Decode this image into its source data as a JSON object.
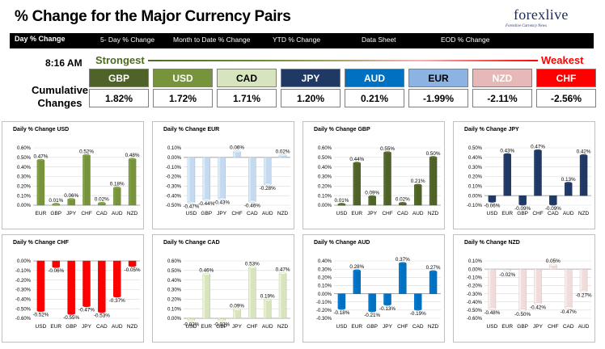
{
  "header": {
    "title": "% Change for the Major Currency Pairs",
    "logo_text": "forexlive",
    "logo_tagline": "Forexlive Currency News"
  },
  "nav": {
    "tabs": [
      "Day % Change",
      "5- Day % Change",
      "Month to Date % Change",
      "YTD % Change",
      "Data Sheet",
      "EOD % Change"
    ]
  },
  "summary": {
    "time": "8:16 AM",
    "strongest_label": "Strongest",
    "weakest_label": "Weakest",
    "cumulative_label_line1": "Cumulative",
    "cumulative_label_line2": "Changes",
    "currencies": [
      {
        "code": "GBP",
        "value": "1.82%",
        "bg": "#4f6228",
        "fg": "#ffffff"
      },
      {
        "code": "USD",
        "value": "1.72%",
        "bg": "#77933c",
        "fg": "#ffffff"
      },
      {
        "code": "CAD",
        "value": "1.71%",
        "bg": "#d7e4bd",
        "fg": "#000000"
      },
      {
        "code": "JPY",
        "value": "1.20%",
        "bg": "#1f3864",
        "fg": "#ffffff"
      },
      {
        "code": "AUD",
        "value": "0.21%",
        "bg": "#0070c0",
        "fg": "#ffffff"
      },
      {
        "code": "EUR",
        "value": "-1.99%",
        "bg": "#8db3e2",
        "fg": "#000000"
      },
      {
        "code": "NZD",
        "value": "-2.11%",
        "bg": "#e6b9b8",
        "fg": "#ffffff"
      },
      {
        "code": "CHF",
        "value": "-2.56%",
        "bg": "#ff0000",
        "fg": "#ffffff"
      }
    ]
  },
  "chart_data": [
    {
      "type": "bar",
      "title": "Daily % Change USD",
      "categories": [
        "EUR",
        "GBP",
        "JPY",
        "CHF",
        "CAD",
        "AUD",
        "NZD"
      ],
      "values": [
        0.47,
        0.01,
        0.06,
        0.52,
        0.02,
        0.18,
        0.48
      ],
      "labels": [
        "0.47%",
        "0.01%",
        "0.06%",
        "0.52%",
        "0.02%",
        "0.18%",
        "0.48%"
      ],
      "ylim": [
        0,
        0.6
      ],
      "yticks": [
        "0.00%",
        "0.10%",
        "0.20%",
        "0.30%",
        "0.40%",
        "0.50%",
        "0.60%"
      ],
      "color": "#77933c"
    },
    {
      "type": "bar",
      "title": "Daily % Change EUR",
      "categories": [
        "USD",
        "GBP",
        "JPY",
        "CHF",
        "CAD",
        "AUD",
        "NZD"
      ],
      "values": [
        -0.47,
        -0.44,
        -0.43,
        0.06,
        -0.46,
        -0.28,
        0.02
      ],
      "labels": [
        "-0.47%",
        "-0.44%",
        "-0.43%",
        "0.06%",
        "-0.46%",
        "-0.28%",
        "0.02%"
      ],
      "ylim": [
        -0.5,
        0.1
      ],
      "yticks": [
        "-0.50%",
        "-0.40%",
        "-0.30%",
        "-0.20%",
        "-0.10%",
        "0.00%",
        "0.10%"
      ],
      "color": "#c5d9f1"
    },
    {
      "type": "bar",
      "title": "Daily % Change GBP",
      "categories": [
        "USD",
        "EUR",
        "JPY",
        "CHF",
        "CAD",
        "AUD",
        "NZD"
      ],
      "values": [
        0.01,
        0.44,
        0.09,
        0.55,
        0.02,
        0.21,
        0.5
      ],
      "labels": [
        "0.01%",
        "0.44%",
        "0.09%",
        "0.55%",
        "0.02%",
        "0.21%",
        "0.50%"
      ],
      "ylim": [
        0,
        0.6
      ],
      "yticks": [
        "0.00%",
        "0.10%",
        "0.20%",
        "0.30%",
        "0.40%",
        "0.50%",
        "0.60%"
      ],
      "color": "#4f6228"
    },
    {
      "type": "bar",
      "title": "Daily % Change JPY",
      "categories": [
        "USD",
        "EUR",
        "GBP",
        "CHF",
        "CAD",
        "AUD",
        "NZD"
      ],
      "values": [
        -0.06,
        0.43,
        -0.09,
        0.47,
        -0.09,
        0.13,
        0.42
      ],
      "labels": [
        "-0.06%",
        "0.43%",
        "-0.09%",
        "0.47%",
        "-0.09%",
        "0.13%",
        "0.42%"
      ],
      "ylim": [
        -0.1,
        0.5
      ],
      "yticks": [
        "-0.10%",
        "0.00%",
        "0.10%",
        "0.20%",
        "0.30%",
        "0.40%",
        "0.50%"
      ],
      "color": "#1f3864"
    },
    {
      "type": "bar",
      "title": "Daily % Change CHF",
      "categories": [
        "USD",
        "EUR",
        "GBP",
        "JPY",
        "CAD",
        "AUD",
        "NZD"
      ],
      "values": [
        -0.52,
        -0.06,
        -0.55,
        -0.47,
        -0.53,
        -0.37,
        -0.05
      ],
      "labels": [
        "-0.52%",
        "-0.06%",
        "-0.55%",
        "-0.47%",
        "-0.53%",
        "-0.37%",
        "-0.05%"
      ],
      "ylim": [
        -0.6,
        0
      ],
      "yticks": [
        "-0.60%",
        "-0.50%",
        "-0.40%",
        "-0.30%",
        "-0.20%",
        "-0.10%",
        "0.00%"
      ],
      "color": "#ff0000"
    },
    {
      "type": "bar",
      "title": "Daily % Change CAD",
      "categories": [
        "USD",
        "EUR",
        "GBP",
        "JPY",
        "CHF",
        "AUD",
        "NZD"
      ],
      "values": [
        -0.02,
        0.46,
        -0.02,
        0.09,
        0.53,
        0.19,
        0.47
      ],
      "labels": [
        "-0.02%",
        "0.46%",
        "-0.02%",
        "0.09%",
        "0.53%",
        "0.19%",
        "0.47%"
      ],
      "ylim": [
        0,
        0.6
      ],
      "yticks": [
        "0.00%",
        "0.10%",
        "0.20%",
        "0.30%",
        "0.40%",
        "0.50%",
        "0.60%"
      ],
      "color": "#d7e4bd"
    },
    {
      "type": "bar",
      "title": "Daily % Change AUD",
      "categories": [
        "USD",
        "EUR",
        "GBP",
        "JPY",
        "CHF",
        "CAD",
        "NZD"
      ],
      "values": [
        -0.18,
        0.28,
        -0.21,
        -0.13,
        0.37,
        -0.19,
        0.27
      ],
      "labels": [
        "-0.18%",
        "0.28%",
        "-0.21%",
        "-0.13%",
        "0.37%",
        "-0.19%",
        "0.27%"
      ],
      "ylim": [
        -0.3,
        0.4
      ],
      "yticks": [
        "-0.30%",
        "-0.20%",
        "-0.10%",
        "0.00%",
        "0.10%",
        "0.20%",
        "0.30%",
        "0.40%"
      ],
      "color": "#0070c0"
    },
    {
      "type": "bar",
      "title": "Daily % Change NZD",
      "categories": [
        "USD",
        "EUR",
        "GBP",
        "JPY",
        "CHF",
        "CAD",
        "AUD"
      ],
      "values": [
        -0.48,
        -0.02,
        -0.5,
        -0.42,
        0.05,
        -0.47,
        -0.27
      ],
      "labels": [
        "-0.48%",
        "-0.02%",
        "-0.50%",
        "-0.42%",
        "0.05%",
        "-0.47%",
        "-0.27%"
      ],
      "ylim": [
        -0.6,
        0.1
      ],
      "yticks": [
        "-0.60%",
        "-0.50%",
        "-0.40%",
        "-0.30%",
        "-0.20%",
        "-0.10%",
        "0.00%",
        "0.10%"
      ],
      "color": "#f2dcdb"
    }
  ]
}
